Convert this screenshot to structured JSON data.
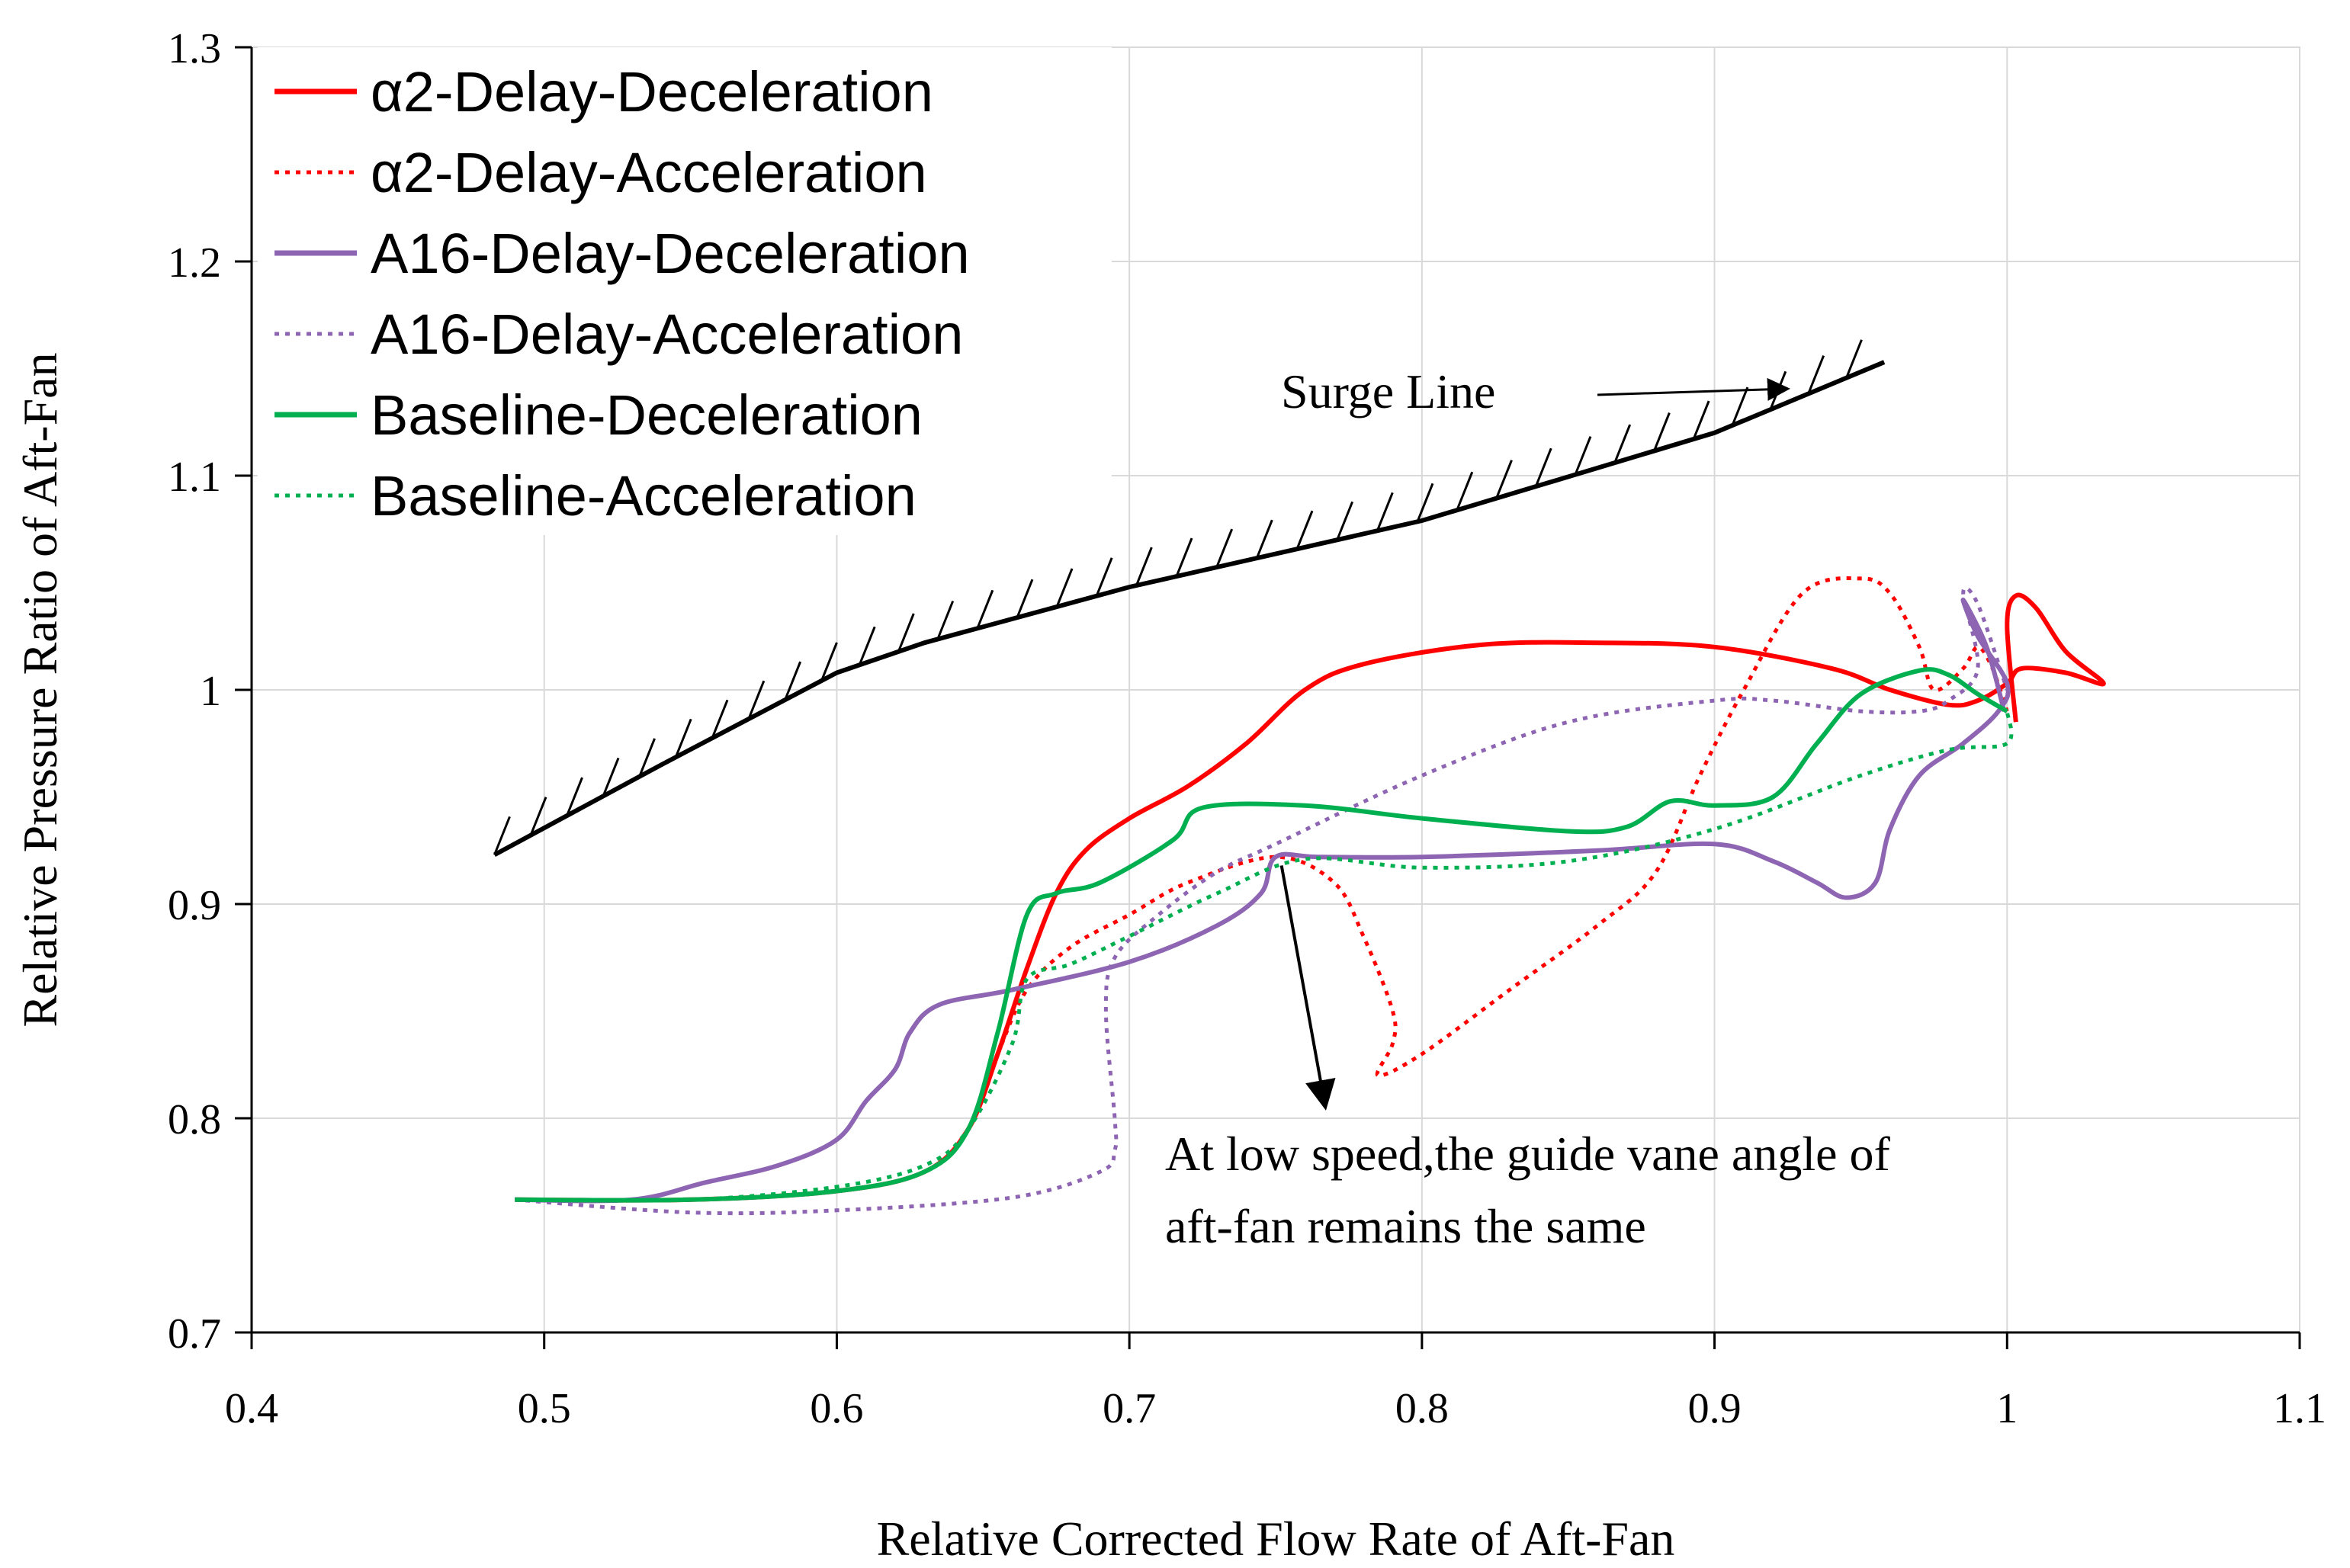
{
  "chart_data": {
    "type": "line",
    "xlabel": "Relative Corrected Flow Rate of Aft-Fan",
    "ylabel": "Relative Pressure Ratio of Aft-Fan",
    "xlim": [
      0.4,
      1.1
    ],
    "ylim": [
      0.7,
      1.3
    ],
    "xticks": [
      0.4,
      0.5,
      0.6,
      0.7,
      0.8,
      0.9,
      1.0,
      1.1
    ],
    "xtick_labels": [
      "0.4",
      "0.5",
      "0.6",
      "0.7",
      "0.8",
      "0.9",
      "1",
      "1.1"
    ],
    "yticks": [
      0.7,
      0.8,
      0.9,
      1.0,
      1.1,
      1.2,
      1.3
    ],
    "ytick_labels": [
      "0.7",
      "0.8",
      "0.9",
      "1",
      "1.1",
      "1.2",
      "1.3"
    ],
    "grid": true,
    "legend_position": "top-left",
    "series": [
      {
        "name": "α2-Delay-Deceleration",
        "color": "#ff0000",
        "dash": "solid",
        "points": [
          [
            0.49,
            0.762
          ],
          [
            0.55,
            0.762
          ],
          [
            0.6,
            0.766
          ],
          [
            0.63,
            0.775
          ],
          [
            0.645,
            0.795
          ],
          [
            0.655,
            0.83
          ],
          [
            0.665,
            0.87
          ],
          [
            0.675,
            0.905
          ],
          [
            0.685,
            0.925
          ],
          [
            0.7,
            0.94
          ],
          [
            0.72,
            0.955
          ],
          [
            0.74,
            0.975
          ],
          [
            0.76,
            1.0
          ],
          [
            0.78,
            1.012
          ],
          [
            0.82,
            1.021
          ],
          [
            0.86,
            1.022
          ],
          [
            0.9,
            1.02
          ],
          [
            0.94,
            1.01
          ],
          [
            0.96,
            1.0
          ],
          [
            0.98,
            0.993
          ],
          [
            0.99,
            0.995
          ],
          [
            1.0,
            1.003
          ],
          [
            1.005,
            1.01
          ],
          [
            1.02,
            1.008
          ],
          [
            1.033,
            1.003
          ],
          [
            1.02,
            1.018
          ],
          [
            1.01,
            1.038
          ],
          [
            1.003,
            1.044
          ],
          [
            1.0,
            1.03
          ],
          [
            1.003,
            0.985
          ]
        ]
      },
      {
        "name": "α2-Delay-Acceleration",
        "color": "#ff0000",
        "dash": "dotted",
        "points": [
          [
            0.49,
            0.762
          ],
          [
            0.55,
            0.762
          ],
          [
            0.6,
            0.766
          ],
          [
            0.63,
            0.775
          ],
          [
            0.645,
            0.795
          ],
          [
            0.655,
            0.83
          ],
          [
            0.665,
            0.86
          ],
          [
            0.68,
            0.88
          ],
          [
            0.7,
            0.895
          ],
          [
            0.72,
            0.91
          ],
          [
            0.75,
            0.922
          ],
          [
            0.77,
            0.91
          ],
          [
            0.78,
            0.885
          ],
          [
            0.79,
            0.85
          ],
          [
            0.79,
            0.835
          ],
          [
            0.785,
            0.82
          ],
          [
            0.8,
            0.83
          ],
          [
            0.83,
            0.86
          ],
          [
            0.86,
            0.89
          ],
          [
            0.88,
            0.915
          ],
          [
            0.895,
            0.96
          ],
          [
            0.91,
            1.0
          ],
          [
            0.93,
            1.045
          ],
          [
            0.95,
            1.052
          ],
          [
            0.96,
            1.045
          ],
          [
            0.97,
            1.02
          ],
          [
            0.975,
            1.0
          ],
          [
            0.985,
            1.01
          ],
          [
            0.99,
            1.02
          ],
          [
            0.995,
            1.01
          ],
          [
            1.0,
            0.99
          ]
        ]
      },
      {
        "name": "A16-Delay-Deceleration",
        "color": "#8e65b2",
        "dash": "solid",
        "points": [
          [
            0.49,
            0.762
          ],
          [
            0.53,
            0.762
          ],
          [
            0.555,
            0.77
          ],
          [
            0.58,
            0.778
          ],
          [
            0.6,
            0.79
          ],
          [
            0.61,
            0.808
          ],
          [
            0.62,
            0.823
          ],
          [
            0.625,
            0.84
          ],
          [
            0.635,
            0.853
          ],
          [
            0.66,
            0.86
          ],
          [
            0.7,
            0.873
          ],
          [
            0.73,
            0.89
          ],
          [
            0.745,
            0.905
          ],
          [
            0.75,
            0.922
          ],
          [
            0.765,
            0.922
          ],
          [
            0.8,
            0.922
          ],
          [
            0.86,
            0.925
          ],
          [
            0.9,
            0.928
          ],
          [
            0.92,
            0.92
          ],
          [
            0.935,
            0.91
          ],
          [
            0.945,
            0.903
          ],
          [
            0.955,
            0.91
          ],
          [
            0.96,
            0.935
          ],
          [
            0.97,
            0.96
          ],
          [
            0.985,
            0.975
          ],
          [
            0.997,
            0.99
          ],
          [
            1.0,
            1.003
          ],
          [
            0.99,
            1.025
          ],
          [
            0.985,
            1.042
          ],
          [
            0.993,
            1.02
          ],
          [
            0.999,
            0.99
          ]
        ]
      },
      {
        "name": "A16-Delay-Acceleration",
        "color": "#8e65b2",
        "dash": "dotted",
        "points": [
          [
            0.49,
            0.762
          ],
          [
            0.55,
            0.756
          ],
          [
            0.6,
            0.757
          ],
          [
            0.66,
            0.763
          ],
          [
            0.69,
            0.775
          ],
          [
            0.695,
            0.785
          ],
          [
            0.695,
            0.8
          ],
          [
            0.692,
            0.85
          ],
          [
            0.695,
            0.875
          ],
          [
            0.71,
            0.895
          ],
          [
            0.73,
            0.915
          ],
          [
            0.75,
            0.928
          ],
          [
            0.8,
            0.96
          ],
          [
            0.85,
            0.985
          ],
          [
            0.9,
            0.995
          ],
          [
            0.92,
            0.995
          ],
          [
            0.95,
            0.99
          ],
          [
            0.97,
            0.99
          ],
          [
            0.98,
            0.995
          ],
          [
            0.99,
            1.01
          ],
          [
            0.985,
            1.045
          ],
          [
            0.99,
            1.04
          ],
          [
            1.0,
            1.0
          ]
        ]
      },
      {
        "name": "Baseline-Deceleration",
        "color": "#00b050",
        "dash": "solid",
        "points": [
          [
            0.49,
            0.762
          ],
          [
            0.55,
            0.762
          ],
          [
            0.6,
            0.766
          ],
          [
            0.63,
            0.775
          ],
          [
            0.645,
            0.795
          ],
          [
            0.655,
            0.84
          ],
          [
            0.665,
            0.895
          ],
          [
            0.675,
            0.905
          ],
          [
            0.69,
            0.91
          ],
          [
            0.715,
            0.93
          ],
          [
            0.725,
            0.945
          ],
          [
            0.76,
            0.946
          ],
          [
            0.8,
            0.94
          ],
          [
            0.85,
            0.934
          ],
          [
            0.87,
            0.936
          ],
          [
            0.885,
            0.948
          ],
          [
            0.9,
            0.946
          ],
          [
            0.92,
            0.95
          ],
          [
            0.935,
            0.975
          ],
          [
            0.95,
            0.998
          ],
          [
            0.97,
            1.009
          ],
          [
            0.98,
            1.007
          ],
          [
            0.99,
            0.998
          ],
          [
            1.0,
            0.99
          ]
        ]
      },
      {
        "name": "Baseline-Acceleration",
        "color": "#00b050",
        "dash": "dotted",
        "points": [
          [
            0.49,
            0.762
          ],
          [
            0.55,
            0.762
          ],
          [
            0.6,
            0.768
          ],
          [
            0.63,
            0.778
          ],
          [
            0.645,
            0.795
          ],
          [
            0.66,
            0.835
          ],
          [
            0.665,
            0.865
          ],
          [
            0.68,
            0.872
          ],
          [
            0.7,
            0.885
          ],
          [
            0.73,
            0.905
          ],
          [
            0.76,
            0.921
          ],
          [
            0.8,
            0.917
          ],
          [
            0.85,
            0.92
          ],
          [
            0.9,
            0.935
          ],
          [
            0.95,
            0.96
          ],
          [
            0.98,
            0.972
          ],
          [
            1.0,
            0.975
          ],
          [
            1.0,
            0.99
          ]
        ]
      }
    ],
    "surge_line": {
      "label": "Surge Line",
      "points": [
        [
          0.483,
          0.923
        ],
        [
          0.54,
          0.965
        ],
        [
          0.6,
          1.008
        ],
        [
          0.63,
          1.022
        ],
        [
          0.7,
          1.048
        ],
        [
          0.8,
          1.079
        ],
        [
          0.9,
          1.12
        ],
        [
          0.958,
          1.153
        ]
      ]
    },
    "annotation": {
      "lines": [
        "At low speed,the guide vane angle of",
        "aft-fan remains the same"
      ],
      "arrow_from": [
        0.752,
        0.918
      ],
      "arrow_to": [
        0.767,
        0.805
      ]
    }
  }
}
